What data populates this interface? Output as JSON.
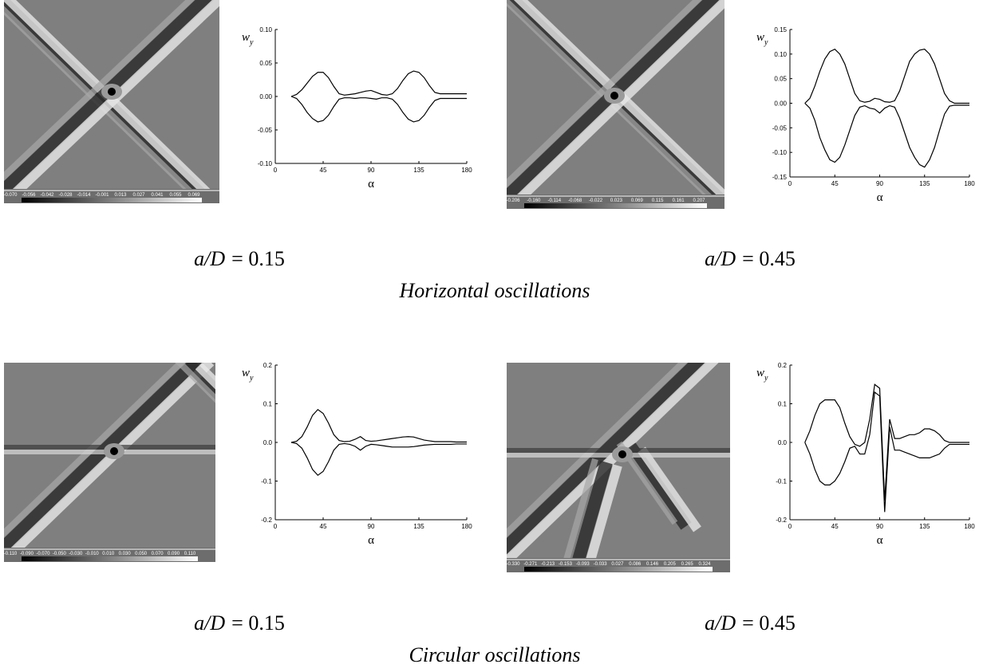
{
  "chart_data": [
    {
      "type": "line",
      "ylabel": "w",
      "ylabel_sub": "y",
      "xlabel": "α",
      "xlim": [
        0,
        180
      ],
      "xticks": [
        0,
        45,
        90,
        135,
        180
      ],
      "ylim": [
        -0.1,
        0.1
      ],
      "yticks": [
        {
          "value": -0.1,
          "label": "-0.10"
        },
        -0.05,
        {
          "value": 0,
          "label": "0.00"
        },
        0.05,
        {
          "value": 0.1,
          "label": "0.10"
        }
      ],
      "x": [
        15,
        20,
        25,
        30,
        35,
        40,
        45,
        50,
        55,
        60,
        65,
        70,
        75,
        80,
        85,
        90,
        95,
        100,
        105,
        110,
        115,
        120,
        125,
        130,
        135,
        140,
        145,
        150,
        155,
        160,
        165,
        170,
        175,
        180
      ],
      "series": [
        {
          "color": "#000000",
          "values": [
            0,
            0.003,
            0.01,
            0.02,
            0.03,
            0.036,
            0.036,
            0.028,
            0.015,
            0.004,
            0.002,
            0.003,
            0.004,
            0.006,
            0.008,
            0.009,
            0.006,
            0.003,
            0.002,
            0.004,
            0.012,
            0.024,
            0.034,
            0.038,
            0.036,
            0.028,
            0.016,
            0.006,
            0.004,
            0.004,
            0.004,
            0.004,
            0.004,
            0.004
          ]
        },
        {
          "color": "#000000",
          "values": [
            0,
            -0.003,
            -0.012,
            -0.024,
            -0.033,
            -0.038,
            -0.036,
            -0.028,
            -0.015,
            -0.004,
            -0.002,
            -0.002,
            -0.003,
            -0.002,
            -0.002,
            -0.003,
            -0.004,
            -0.002,
            -0.002,
            -0.004,
            -0.012,
            -0.024,
            -0.034,
            -0.038,
            -0.036,
            -0.028,
            -0.016,
            -0.006,
            -0.003,
            -0.003,
            -0.003,
            -0.003,
            -0.003,
            -0.003
          ]
        }
      ]
    },
    {
      "type": "line",
      "ylabel": "w",
      "ylabel_sub": "y",
      "xlabel": "α",
      "xlim": [
        0,
        180
      ],
      "xticks": [
        0,
        45,
        90,
        135,
        180
      ],
      "ylim": [
        -0.15,
        0.15
      ],
      "yticks": [
        {
          "value": -0.15,
          "label": "-0.15"
        },
        {
          "value": -0.1,
          "label": "-0.10"
        },
        -0.05,
        {
          "value": 0,
          "label": "0.00"
        },
        0.05,
        {
          "value": 0.1,
          "label": "0.10"
        },
        0.15
      ],
      "x": [
        15,
        20,
        25,
        30,
        35,
        40,
        45,
        50,
        55,
        60,
        65,
        70,
        75,
        80,
        85,
        90,
        95,
        100,
        105,
        110,
        115,
        120,
        125,
        130,
        135,
        140,
        145,
        150,
        155,
        160,
        165,
        170,
        175,
        180
      ],
      "series": [
        {
          "color": "#000000",
          "values": [
            0,
            0.01,
            0.035,
            0.065,
            0.09,
            0.105,
            0.11,
            0.1,
            0.08,
            0.05,
            0.02,
            0.005,
            0.002,
            0.004,
            0.01,
            0.008,
            0.003,
            0.002,
            0.005,
            0.025,
            0.055,
            0.085,
            0.1,
            0.108,
            0.11,
            0.1,
            0.08,
            0.05,
            0.02,
            0.005,
            0,
            0,
            0,
            0
          ]
        },
        {
          "color": "#000000",
          "values": [
            0,
            -0.01,
            -0.035,
            -0.07,
            -0.095,
            -0.115,
            -0.12,
            -0.11,
            -0.085,
            -0.055,
            -0.025,
            -0.008,
            -0.005,
            -0.01,
            -0.012,
            -0.02,
            -0.01,
            -0.005,
            -0.008,
            -0.03,
            -0.06,
            -0.09,
            -0.11,
            -0.125,
            -0.13,
            -0.115,
            -0.09,
            -0.055,
            -0.022,
            -0.006,
            -0.004,
            -0.004,
            -0.004,
            -0.004
          ]
        }
      ]
    },
    {
      "type": "line",
      "ylabel": "w",
      "ylabel_sub": "y",
      "xlabel": "α",
      "xlim": [
        0,
        180
      ],
      "xticks": [
        0,
        45,
        90,
        135,
        180
      ],
      "ylim": [
        -0.2,
        0.2
      ],
      "yticks": [
        -0.2,
        -0.1,
        {
          "value": 0,
          "label": "0.0"
        },
        0.1,
        0.2
      ],
      "x": [
        15,
        20,
        25,
        30,
        35,
        40,
        45,
        50,
        55,
        60,
        65,
        70,
        75,
        80,
        85,
        90,
        95,
        100,
        105,
        110,
        115,
        120,
        125,
        130,
        135,
        140,
        145,
        150,
        155,
        160,
        165,
        170,
        175,
        180
      ],
      "series": [
        {
          "color": "#000000",
          "values": [
            0,
            0.003,
            0.015,
            0.04,
            0.07,
            0.085,
            0.075,
            0.05,
            0.02,
            0.005,
            0.002,
            0.003,
            0.008,
            0.015,
            0.005,
            0.003,
            0.004,
            0.006,
            0.008,
            0.01,
            0.012,
            0.014,
            0.015,
            0.014,
            0.01,
            0.006,
            0.004,
            0.002,
            0.002,
            0.002,
            0.002,
            0.001,
            0.001,
            0.001
          ]
        },
        {
          "color": "#000000",
          "values": [
            0,
            -0.003,
            -0.015,
            -0.04,
            -0.07,
            -0.085,
            -0.075,
            -0.05,
            -0.02,
            -0.005,
            -0.003,
            -0.005,
            -0.01,
            -0.02,
            -0.01,
            -0.005,
            -0.006,
            -0.008,
            -0.01,
            -0.012,
            -0.012,
            -0.012,
            -0.012,
            -0.011,
            -0.009,
            -0.007,
            -0.006,
            -0.005,
            -0.005,
            -0.005,
            -0.005,
            -0.004,
            -0.004,
            -0.004
          ]
        }
      ]
    },
    {
      "type": "line",
      "ylabel": "w",
      "ylabel_sub": "y",
      "xlabel": "α",
      "xlim": [
        0,
        180
      ],
      "xticks": [
        0,
        45,
        90,
        135,
        180
      ],
      "ylim": [
        -0.2,
        0.2
      ],
      "yticks": [
        -0.2,
        -0.1,
        {
          "value": 0,
          "label": "0.0"
        },
        0.1,
        0.2
      ],
      "x": [
        15,
        20,
        25,
        30,
        35,
        40,
        45,
        50,
        55,
        60,
        65,
        70,
        75,
        80,
        85,
        90,
        95,
        100,
        105,
        110,
        115,
        120,
        125,
        130,
        135,
        140,
        145,
        150,
        155,
        160,
        165,
        170,
        175,
        180
      ],
      "series": [
        {
          "color": "#000000",
          "values": [
            0,
            0.03,
            0.07,
            0.1,
            0.11,
            0.11,
            0.11,
            0.09,
            0.05,
            0.015,
            -0.005,
            -0.01,
            0,
            0.06,
            0.15,
            0.14,
            -0.15,
            0.06,
            0.01,
            0.01,
            0.015,
            0.02,
            0.02,
            0.025,
            0.035,
            0.035,
            0.03,
            0.02,
            0.005,
            0,
            0,
            0,
            0,
            0
          ]
        },
        {
          "color": "#000000",
          "values": [
            0,
            -0.03,
            -0.07,
            -0.1,
            -0.11,
            -0.11,
            -0.1,
            -0.08,
            -0.05,
            -0.015,
            -0.01,
            -0.03,
            -0.03,
            0.02,
            0.13,
            0.12,
            -0.18,
            0.04,
            -0.02,
            -0.02,
            -0.025,
            -0.03,
            -0.035,
            -0.04,
            -0.04,
            -0.04,
            -0.035,
            -0.03,
            -0.015,
            -0.005,
            -0.005,
            -0.005,
            -0.005,
            -0.005
          ]
        }
      ]
    }
  ],
  "colorbars": [
    [
      "-0.070",
      "-0.056",
      "-0.042",
      "-0.028",
      "-0.014",
      "-0.001",
      "0.013",
      "0.027",
      "0.041",
      "0.055",
      "0.069"
    ],
    [
      "-0.206",
      "-0.160",
      "-0.114",
      "-0.068",
      "-0.022",
      "0.023",
      "0.069",
      "0.115",
      "0.161",
      "0.207"
    ],
    [
      "-0.110",
      "-0.090",
      "-0.070",
      "-0.050",
      "-0.030",
      "-0.010",
      "0.010",
      "0.030",
      "0.050",
      "0.070",
      "0.090",
      "0.110"
    ],
    [
      "-0.330",
      "-0.271",
      "-0.213",
      "-0.153",
      "-0.093",
      "-0.033",
      "0.027",
      "0.086",
      "0.146",
      "0.205",
      "0.265",
      "0.324"
    ]
  ],
  "captions": [
    {
      "symbol": "a/D",
      "rest": "= 0.15"
    },
    {
      "symbol": "a/D",
      "rest": "= 0.45"
    },
    {
      "symbol": "a/D",
      "rest": "= 0.15"
    },
    {
      "symbol": "a/D",
      "rest": "= 0.45"
    }
  ],
  "group_titles": [
    "Horizontal oscillations",
    "Circular oscillations"
  ]
}
